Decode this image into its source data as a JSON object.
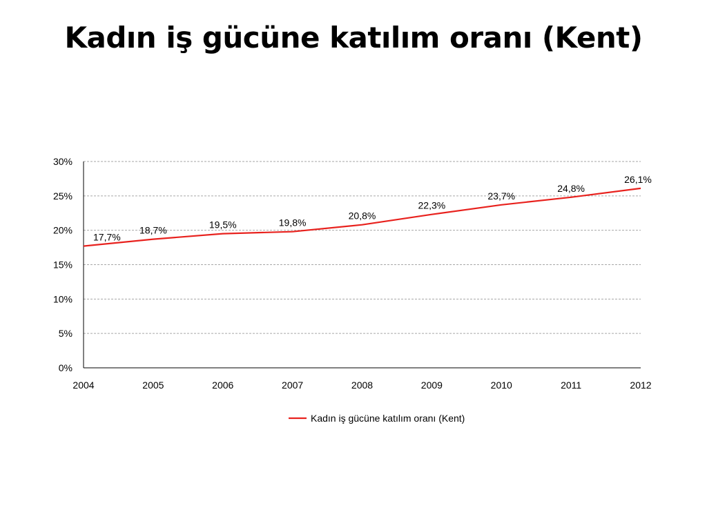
{
  "slide": {
    "title": "Kadın iş gücüne katılım oranı (Kent)"
  },
  "chart_data": {
    "type": "line",
    "title": "",
    "xlabel": "",
    "ylabel": "",
    "categories": [
      "2004",
      "2005",
      "2006",
      "2007",
      "2008",
      "2009",
      "2010",
      "2011",
      "2012"
    ],
    "series": [
      {
        "name": "Kadın iş gücüne katılım oranı (Kent)",
        "color": "#e8211d",
        "values": [
          17.7,
          18.7,
          19.5,
          19.8,
          20.8,
          22.3,
          23.7,
          24.8,
          26.1
        ],
        "labels": [
          "17,7%",
          "18,7%",
          "19,5%",
          "19,8%",
          "20,8%",
          "22,3%",
          "23,7%",
          "24,8%",
          "26,1%"
        ]
      }
    ],
    "ylim": [
      0,
      30
    ],
    "yticks": [
      0,
      5,
      10,
      15,
      20,
      25,
      30
    ],
    "ytick_labels": [
      "0%",
      "5%",
      "10%",
      "15%",
      "20%",
      "25%",
      "30%"
    ],
    "grid": true,
    "legend_position": "bottom-center"
  }
}
